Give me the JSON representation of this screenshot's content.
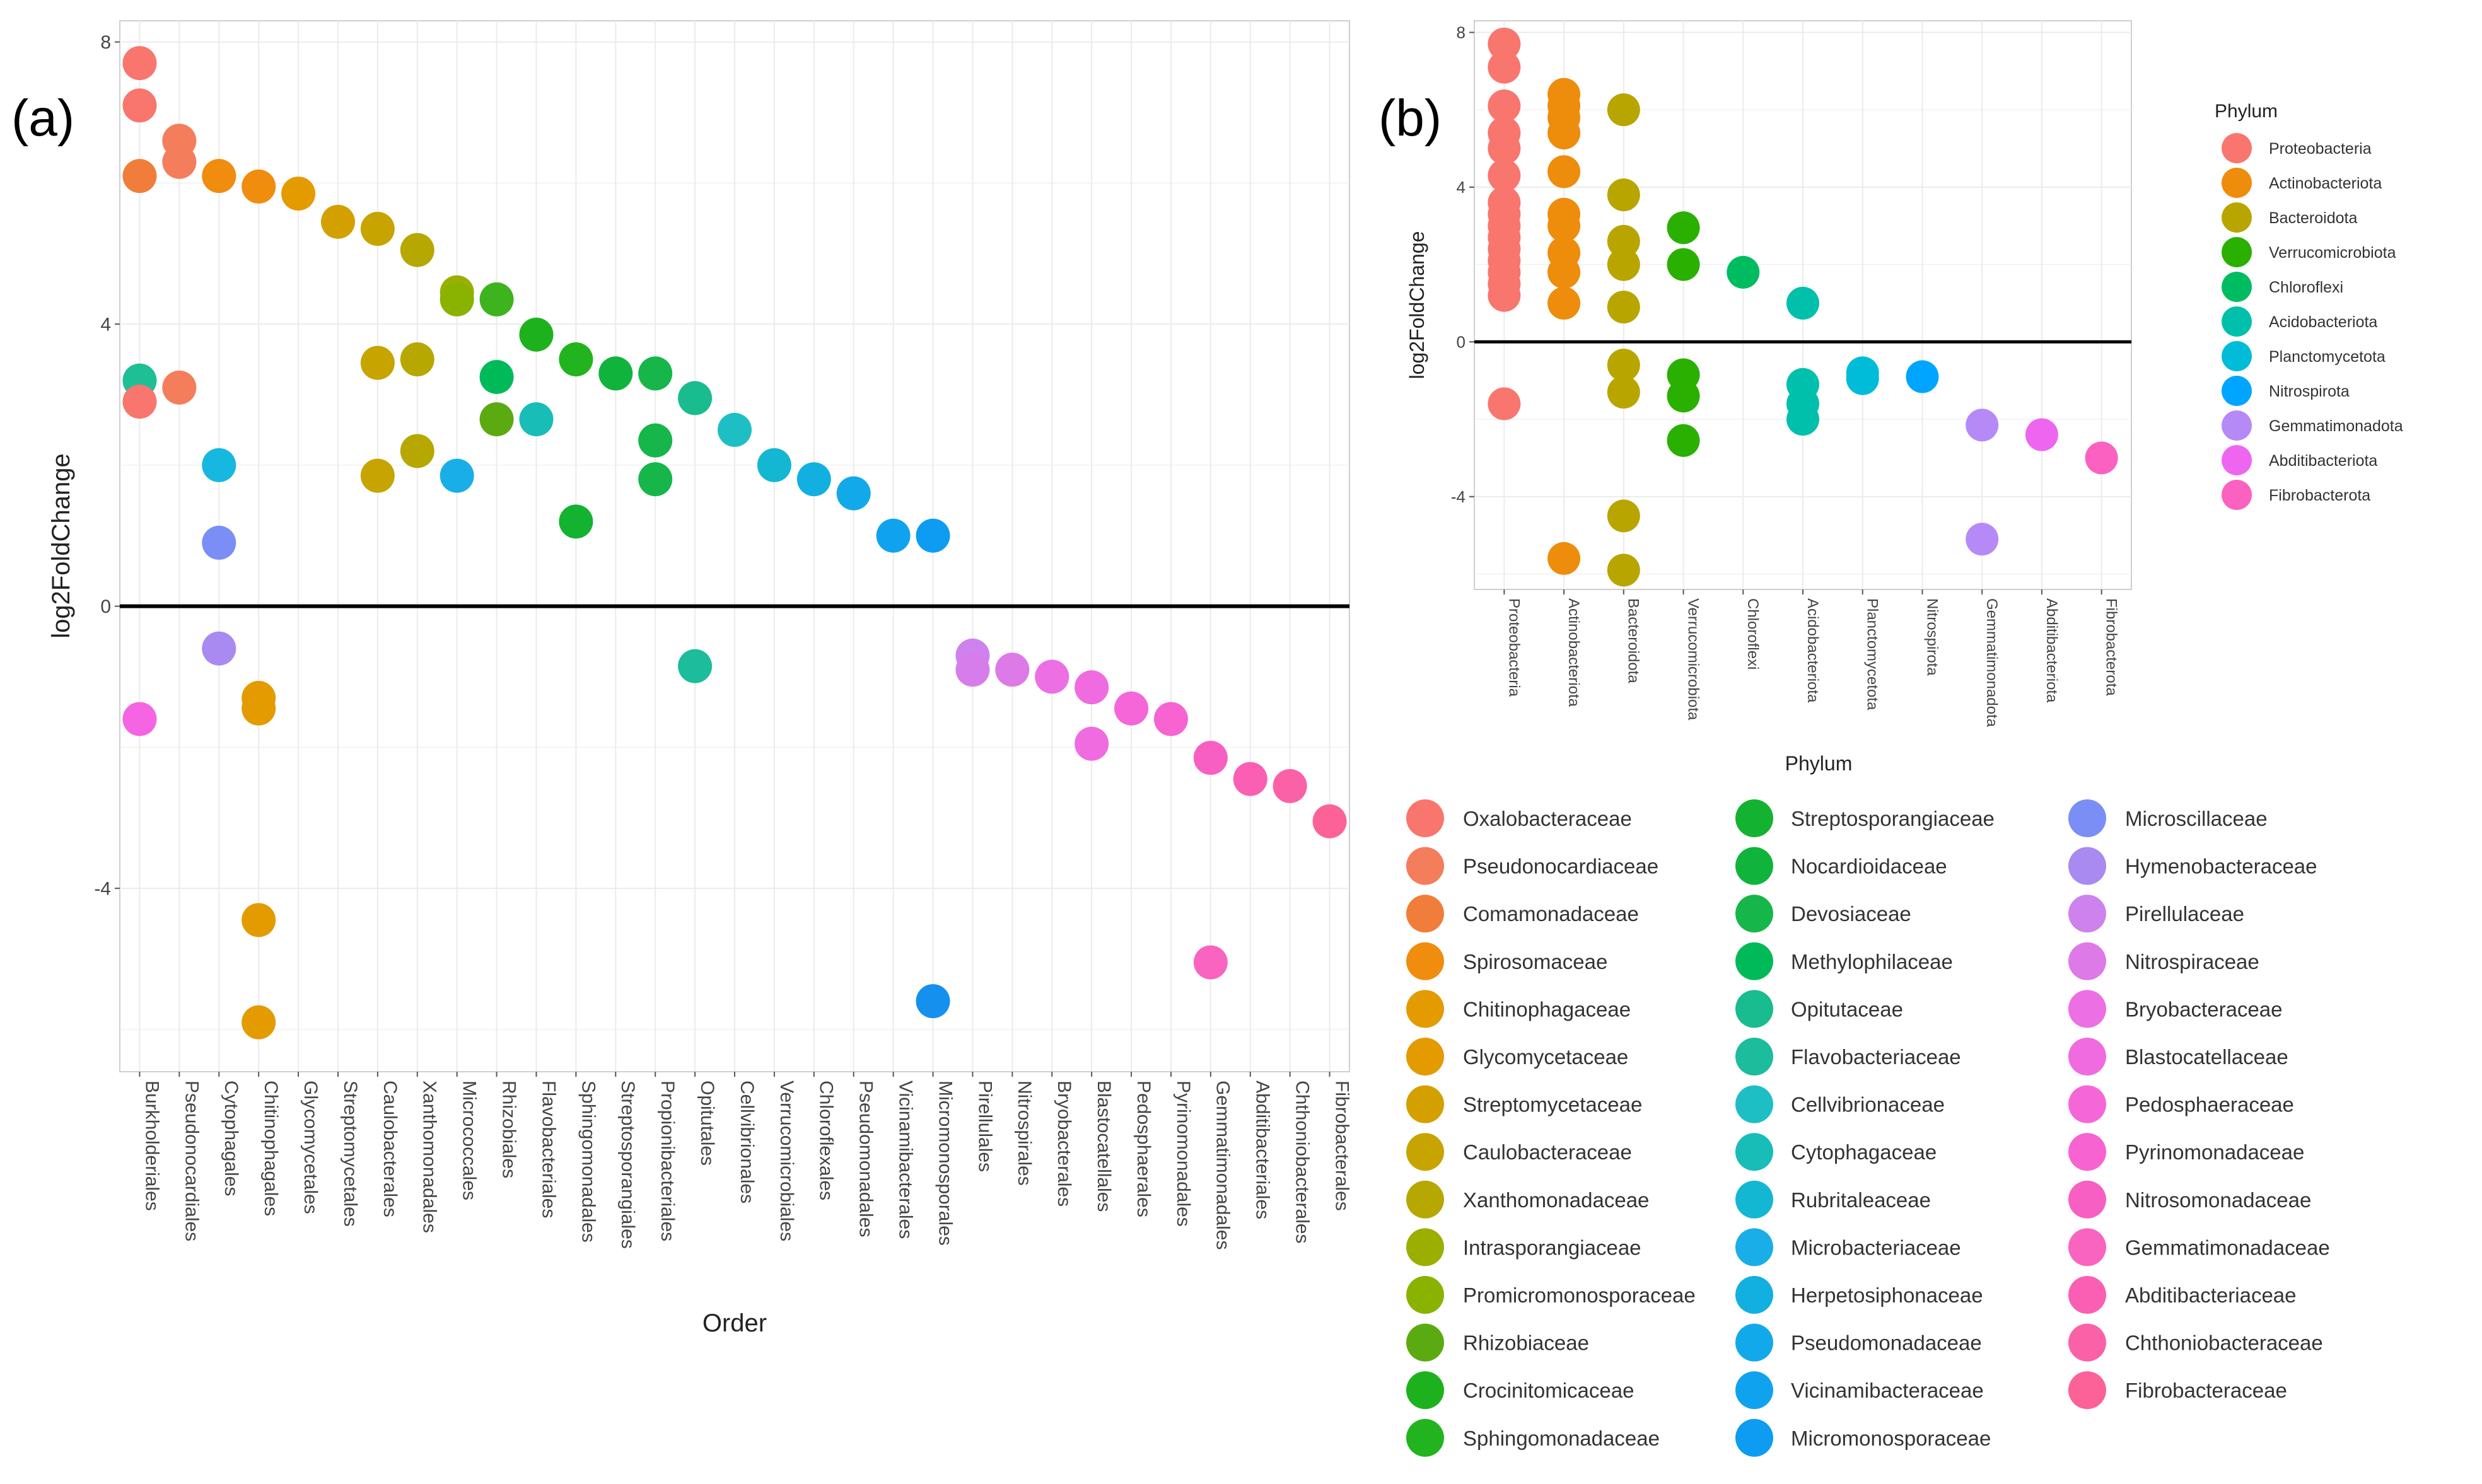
{
  "panel_a_label": "(a)",
  "panel_b_label": "(b)",
  "chart_data": [
    {
      "type": "scatter",
      "title": "",
      "xlabel": "Order",
      "ylabel": "log2FoldChange",
      "ylim": [
        -6.6,
        8.3
      ],
      "yticks": [
        -4,
        0,
        4,
        8
      ],
      "ytick_labels": [
        "-4",
        "0",
        "4",
        "8"
      ],
      "grid": true,
      "reference_line": 0,
      "categories": [
        "Burkholderiales",
        "Pseudonocardiales",
        "Cytophagales",
        "Chitinophagales",
        "Glycomycetales",
        "Streptomycetales",
        "Caulobacterales",
        "Xanthomonadales",
        "Micrococcales",
        "Rhizobiales",
        "Flavobacteriales",
        "Sphingomonadales",
        "Streptosporangiales",
        "Propionibacteriales",
        "Opitutales",
        "Cellvibrionales",
        "Verrucomicrobiales",
        "Chloroflexales",
        "Pseudomonadales",
        "Vicinamibacterales",
        "Micromonosporales",
        "Pirellulales",
        "Nitrospirales",
        "Bryobacterales",
        "Blastocatellales",
        "Pedosphaerales",
        "Pyrinomonadales",
        "Gemmatimonadales",
        "Abditibacteriales",
        "Chthoniobacterales",
        "Fibrobacterales"
      ],
      "points": [
        {
          "x": "Burkholderiales",
          "y": 7.7,
          "color": "#F8766D"
        },
        {
          "x": "Burkholderiales",
          "y": 7.1,
          "color": "#F8766D"
        },
        {
          "x": "Burkholderiales",
          "y": 6.1,
          "color": "#F07E3A"
        },
        {
          "x": "Burkholderiales",
          "y": 3.2,
          "color": "#1FBF96"
        },
        {
          "x": "Burkholderiales",
          "y": 2.9,
          "color": "#F8766D"
        },
        {
          "x": "Burkholderiales",
          "y": -1.6,
          "color": "#F564E3"
        },
        {
          "x": "Pseudonocardiales",
          "y": 6.6,
          "color": "#F47D5C"
        },
        {
          "x": "Pseudonocardiales",
          "y": 6.3,
          "color": "#F47D5C"
        },
        {
          "x": "Pseudonocardiales",
          "y": 3.1,
          "color": "#F47D5C"
        },
        {
          "x": "Cytophagales",
          "y": 6.1,
          "color": "#F08C0E"
        },
        {
          "x": "Cytophagales",
          "y": 2.0,
          "color": "#16B8DF"
        },
        {
          "x": "Cytophagales",
          "y": 0.9,
          "color": "#7A8EF5"
        },
        {
          "x": "Cytophagales",
          "y": -0.6,
          "color": "#A88AF0"
        },
        {
          "x": "Chitinophagales",
          "y": 5.95,
          "color": "#F08C0E"
        },
        {
          "x": "Chitinophagales",
          "y": -1.3,
          "color": "#E39B00"
        },
        {
          "x": "Chitinophagales",
          "y": -1.45,
          "color": "#E39B00"
        },
        {
          "x": "Chitinophagales",
          "y": -4.45,
          "color": "#E39B00"
        },
        {
          "x": "Chitinophagales",
          "y": -5.9,
          "color": "#E39B00"
        },
        {
          "x": "Glycomycetales",
          "y": 5.85,
          "color": "#E39B00"
        },
        {
          "x": "Streptomycetales",
          "y": 5.45,
          "color": "#D3A000"
        },
        {
          "x": "Caulobacterales",
          "y": 5.35,
          "color": "#C7A400"
        },
        {
          "x": "Caulobacterales",
          "y": 3.45,
          "color": "#C7A400"
        },
        {
          "x": "Caulobacterales",
          "y": 1.85,
          "color": "#C7A400"
        },
        {
          "x": "Xanthomonadales",
          "y": 5.05,
          "color": "#B6A800"
        },
        {
          "x": "Xanthomonadales",
          "y": 3.5,
          "color": "#B6A800"
        },
        {
          "x": "Xanthomonadales",
          "y": 2.2,
          "color": "#B6A800"
        },
        {
          "x": "Micrococcales",
          "y": 4.45,
          "color": "#9AAF00"
        },
        {
          "x": "Micrococcales",
          "y": 4.35,
          "color": "#8AB200"
        },
        {
          "x": "Micrococcales",
          "y": 1.85,
          "color": "#1AAEE8"
        },
        {
          "x": "Rhizobiales",
          "y": 4.35,
          "color": "#3DB41E"
        },
        {
          "x": "Rhizobiales",
          "y": 3.25,
          "color": "#00BA5A"
        },
        {
          "x": "Rhizobiales",
          "y": 2.65,
          "color": "#5CAA12"
        },
        {
          "x": "Flavobacteriales",
          "y": 3.85,
          "color": "#1EB11E"
        },
        {
          "x": "Flavobacteriales",
          "y": 2.65,
          "color": "#18BDB7"
        },
        {
          "x": "Sphingomonadales",
          "y": 3.5,
          "color": "#22B41E"
        },
        {
          "x": "Sphingomonadales",
          "y": 1.2,
          "color": "#13B230"
        },
        {
          "x": "Streptosporangiales",
          "y": 3.3,
          "color": "#10B43C"
        },
        {
          "x": "Propionibacteriales",
          "y": 3.3,
          "color": "#16B64A"
        },
        {
          "x": "Propionibacteriales",
          "y": 2.35,
          "color": "#16B64A"
        },
        {
          "x": "Propionibacteriales",
          "y": 1.8,
          "color": "#16B64A"
        },
        {
          "x": "Opitutales",
          "y": 2.95,
          "color": "#19BC8E"
        },
        {
          "x": "Opitutales",
          "y": -0.85,
          "color": "#1CBC9C"
        },
        {
          "x": "Cellvibrionales",
          "y": 2.5,
          "color": "#1EBFC4"
        },
        {
          "x": "Verrucomicrobiales",
          "y": 2.0,
          "color": "#14B7D2"
        },
        {
          "x": "Chloroflexales",
          "y": 1.8,
          "color": "#12B0E0"
        },
        {
          "x": "Pseudomonadales",
          "y": 1.6,
          "color": "#12A9EB"
        },
        {
          "x": "Vicinamibacterales",
          "y": 1.0,
          "color": "#0FA3EF"
        },
        {
          "x": "Micromonosporales",
          "y": 1.0,
          "color": "#0D9CF1"
        },
        {
          "x": "Micromonosporales",
          "y": -5.6,
          "color": "#1590EE"
        },
        {
          "x": "Pirellulales",
          "y": -0.7,
          "color": "#CD82EE"
        },
        {
          "x": "Pirellulales",
          "y": -0.9,
          "color": "#D77DEB"
        },
        {
          "x": "Nitrospirales",
          "y": -0.9,
          "color": "#DE79E8"
        },
        {
          "x": "Bryobacterales",
          "y": -1.0,
          "color": "#EC6FE3"
        },
        {
          "x": "Blastocatellales",
          "y": -1.15,
          "color": "#F06BE0"
        },
        {
          "x": "Blastocatellales",
          "y": -1.95,
          "color": "#F06BE0"
        },
        {
          "x": "Pedosphaerales",
          "y": -1.45,
          "color": "#F567D8"
        },
        {
          "x": "Pyrinomonadales",
          "y": -1.6,
          "color": "#F763D0"
        },
        {
          "x": "Gemmatimonadales",
          "y": -2.15,
          "color": "#F85FC2"
        },
        {
          "x": "Gemmatimonadales",
          "y": -5.05,
          "color": "#F864BF"
        },
        {
          "x": "Abditibacteriales",
          "y": -2.45,
          "color": "#FA5FB4"
        },
        {
          "x": "Chthoniobacterales",
          "y": -2.55,
          "color": "#FB61A6"
        },
        {
          "x": "Fibrobacterales",
          "y": -3.05,
          "color": "#FC6298"
        }
      ]
    },
    {
      "type": "scatter",
      "title": "",
      "xlabel": "Phylum",
      "ylabel": "log2FoldChange",
      "ylim": [
        -6.4,
        8.3
      ],
      "yticks": [
        -4,
        0,
        4,
        8
      ],
      "ytick_labels": [
        "-4",
        "0",
        "4",
        "8"
      ],
      "grid": true,
      "reference_line": 0,
      "categories": [
        "Proteobacteria",
        "Actinobacteriota",
        "Bacteroidota",
        "Verrucomicrobiota",
        "Chloroflexi",
        "Acidobacteriota",
        "Planctomycetota",
        "Nitrospirota",
        "Gemmatimonadota",
        "Abditibacteriota",
        "Fibrobacterota"
      ],
      "legend": {
        "title": "Phylum",
        "placement": "right",
        "entries": [
          {
            "label": "Proteobacteria",
            "color": "#F8766D"
          },
          {
            "label": "Actinobacteriota",
            "color": "#EE8C0C"
          },
          {
            "label": "Bacteroidota",
            "color": "#B8A500"
          },
          {
            "label": "Verrucomicrobiota",
            "color": "#2AB000"
          },
          {
            "label": "Chloroflexi",
            "color": "#00BC61"
          },
          {
            "label": "Acidobacteriota",
            "color": "#00C0AB"
          },
          {
            "label": "Planctomycetota",
            "color": "#00BCD8"
          },
          {
            "label": "Nitrospirota",
            "color": "#00A5FF"
          },
          {
            "label": "Gemmatimonadota",
            "color": "#B58AF7"
          },
          {
            "label": "Abditibacteriota",
            "color": "#EE66F0"
          },
          {
            "label": "Fibrobacterota",
            "color": "#FB61C0"
          }
        ]
      },
      "points": [
        {
          "x": "Proteobacteria",
          "y": 7.7,
          "color": "#F8766D"
        },
        {
          "x": "Proteobacteria",
          "y": 7.1,
          "color": "#F8766D"
        },
        {
          "x": "Proteobacteria",
          "y": 6.1,
          "color": "#F8766D"
        },
        {
          "x": "Proteobacteria",
          "y": 5.4,
          "color": "#F8766D"
        },
        {
          "x": "Proteobacteria",
          "y": 5.0,
          "color": "#F8766D"
        },
        {
          "x": "Proteobacteria",
          "y": 4.3,
          "color": "#F8766D"
        },
        {
          "x": "Proteobacteria",
          "y": 3.6,
          "color": "#F8766D"
        },
        {
          "x": "Proteobacteria",
          "y": 3.3,
          "color": "#F8766D"
        },
        {
          "x": "Proteobacteria",
          "y": 3.0,
          "color": "#F8766D"
        },
        {
          "x": "Proteobacteria",
          "y": 2.7,
          "color": "#F8766D"
        },
        {
          "x": "Proteobacteria",
          "y": 2.4,
          "color": "#F8766D"
        },
        {
          "x": "Proteobacteria",
          "y": 2.1,
          "color": "#F8766D"
        },
        {
          "x": "Proteobacteria",
          "y": 1.8,
          "color": "#F8766D"
        },
        {
          "x": "Proteobacteria",
          "y": 1.5,
          "color": "#F8766D"
        },
        {
          "x": "Proteobacteria",
          "y": 1.2,
          "color": "#F8766D"
        },
        {
          "x": "Proteobacteria",
          "y": -1.6,
          "color": "#F8766D"
        },
        {
          "x": "Actinobacteriota",
          "y": 6.4,
          "color": "#EE8C0C"
        },
        {
          "x": "Actinobacteriota",
          "y": 6.1,
          "color": "#EE8C0C"
        },
        {
          "x": "Actinobacteriota",
          "y": 5.8,
          "color": "#EE8C0C"
        },
        {
          "x": "Actinobacteriota",
          "y": 5.4,
          "color": "#EE8C0C"
        },
        {
          "x": "Actinobacteriota",
          "y": 4.4,
          "color": "#EE8C0C"
        },
        {
          "x": "Actinobacteriota",
          "y": 3.3,
          "color": "#EE8C0C"
        },
        {
          "x": "Actinobacteriota",
          "y": 3.0,
          "color": "#EE8C0C"
        },
        {
          "x": "Actinobacteriota",
          "y": 2.3,
          "color": "#EE8C0C"
        },
        {
          "x": "Actinobacteriota",
          "y": 1.8,
          "color": "#EE8C0C"
        },
        {
          "x": "Actinobacteriota",
          "y": 1.0,
          "color": "#EE8C0C"
        },
        {
          "x": "Actinobacteriota",
          "y": -5.6,
          "color": "#EE8C0C"
        },
        {
          "x": "Bacteroidota",
          "y": 6.0,
          "color": "#B8A500"
        },
        {
          "x": "Bacteroidota",
          "y": 3.8,
          "color": "#B8A500"
        },
        {
          "x": "Bacteroidota",
          "y": 2.6,
          "color": "#B8A500"
        },
        {
          "x": "Bacteroidota",
          "y": 2.0,
          "color": "#B8A500"
        },
        {
          "x": "Bacteroidota",
          "y": 0.9,
          "color": "#B8A500"
        },
        {
          "x": "Bacteroidota",
          "y": -0.6,
          "color": "#B8A500"
        },
        {
          "x": "Bacteroidota",
          "y": -1.3,
          "color": "#B8A500"
        },
        {
          "x": "Bacteroidota",
          "y": -4.5,
          "color": "#B8A500"
        },
        {
          "x": "Bacteroidota",
          "y": -5.9,
          "color": "#B8A500"
        },
        {
          "x": "Verrucomicrobiota",
          "y": 2.95,
          "color": "#2AB000"
        },
        {
          "x": "Verrucomicrobiota",
          "y": 2.0,
          "color": "#2AB000"
        },
        {
          "x": "Verrucomicrobiota",
          "y": -0.85,
          "color": "#2AB000"
        },
        {
          "x": "Verrucomicrobiota",
          "y": -1.4,
          "color": "#2AB000"
        },
        {
          "x": "Verrucomicrobiota",
          "y": -2.55,
          "color": "#2AB000"
        },
        {
          "x": "Chloroflexi",
          "y": 1.8,
          "color": "#00BC61"
        },
        {
          "x": "Acidobacteriota",
          "y": 1.0,
          "color": "#00C0AB"
        },
        {
          "x": "Acidobacteriota",
          "y": -1.1,
          "color": "#00C0AB"
        },
        {
          "x": "Acidobacteriota",
          "y": -1.6,
          "color": "#00C0AB"
        },
        {
          "x": "Acidobacteriota",
          "y": -2.0,
          "color": "#00C0AB"
        },
        {
          "x": "Planctomycetota",
          "y": -0.8,
          "color": "#00BCD8"
        },
        {
          "x": "Planctomycetota",
          "y": -0.95,
          "color": "#00BCD8"
        },
        {
          "x": "Nitrospirota",
          "y": -0.9,
          "color": "#00A5FF"
        },
        {
          "x": "Gemmatimonadota",
          "y": -2.15,
          "color": "#B58AF7"
        },
        {
          "x": "Gemmatimonadota",
          "y": -5.1,
          "color": "#B58AF7"
        },
        {
          "x": "Abditibacteriota",
          "y": -2.4,
          "color": "#EE66F0"
        },
        {
          "x": "Fibrobacterota",
          "y": -3.0,
          "color": "#FB61C0"
        }
      ]
    }
  ],
  "family_legend": {
    "entries": [
      {
        "label": "Oxalobacteraceae",
        "color": "#F8766D"
      },
      {
        "label": "Pseudonocardiaceae",
        "color": "#F47D5C"
      },
      {
        "label": "Comamonadaceae",
        "color": "#F07E3A"
      },
      {
        "label": "Spirosomaceae",
        "color": "#F08C0E"
      },
      {
        "label": "Chitinophagaceae",
        "color": "#E39B00"
      },
      {
        "label": "Glycomycetaceae",
        "color": "#E39B00"
      },
      {
        "label": "Streptomycetaceae",
        "color": "#D3A000"
      },
      {
        "label": "Caulobacteraceae",
        "color": "#C7A400"
      },
      {
        "label": "Xanthomonadaceae",
        "color": "#B6A800"
      },
      {
        "label": "Intrasporangiaceae",
        "color": "#9AAF00"
      },
      {
        "label": "Promicromonosporaceae",
        "color": "#8AB200"
      },
      {
        "label": "Rhizobiaceae",
        "color": "#5CAA12"
      },
      {
        "label": "Crocinitomicaceae",
        "color": "#1EB11E"
      },
      {
        "label": "Sphingomonadaceae",
        "color": "#22B41E"
      },
      {
        "label": "Streptosporangiaceae",
        "color": "#13B230"
      },
      {
        "label": "Nocardioidaceae",
        "color": "#10B43C"
      },
      {
        "label": "Devosiaceae",
        "color": "#16B64A"
      },
      {
        "label": "Methylophilaceae",
        "color": "#00BA5A"
      },
      {
        "label": "Opitutaceae",
        "color": "#19BC8E"
      },
      {
        "label": "Flavobacteriaceae",
        "color": "#1CBC9C"
      },
      {
        "label": "Cellvibrionaceae",
        "color": "#1EBFC4"
      },
      {
        "label": "Cytophagaceae",
        "color": "#18BDB7"
      },
      {
        "label": "Rubritaleaceae",
        "color": "#14B7D2"
      },
      {
        "label": "Microbacteriaceae",
        "color": "#1AAEE8"
      },
      {
        "label": "Herpetosiphonaceae",
        "color": "#12B0E0"
      },
      {
        "label": "Pseudomonadaceae",
        "color": "#12A9EB"
      },
      {
        "label": "Vicinamibacteraceae",
        "color": "#0FA3EF"
      },
      {
        "label": "Micromonosporaceae",
        "color": "#0D9CF1"
      },
      {
        "label": "Microscillaceae",
        "color": "#7A8EF5"
      },
      {
        "label": "Hymenobacteraceae",
        "color": "#A88AF0"
      },
      {
        "label": "Pirellulaceae",
        "color": "#CD82EE"
      },
      {
        "label": "Nitrospiraceae",
        "color": "#DE79E8"
      },
      {
        "label": "Bryobacteraceae",
        "color": "#EC6FE3"
      },
      {
        "label": "Blastocatellaceae",
        "color": "#F06BE0"
      },
      {
        "label": "Pedosphaeraceae",
        "color": "#F567D8"
      },
      {
        "label": "Pyrinomonadaceae",
        "color": "#F763D0"
      },
      {
        "label": "Nitrosomonadaceae",
        "color": "#F85FC2"
      },
      {
        "label": "Gemmatimonadaceae",
        "color": "#F864BF"
      },
      {
        "label": "Abditibacteriaceae",
        "color": "#FA5FB4"
      },
      {
        "label": "Chthoniobacteraceae",
        "color": "#FB61A6"
      },
      {
        "label": "Fibrobacteraceae",
        "color": "#FC6298"
      }
    ]
  }
}
